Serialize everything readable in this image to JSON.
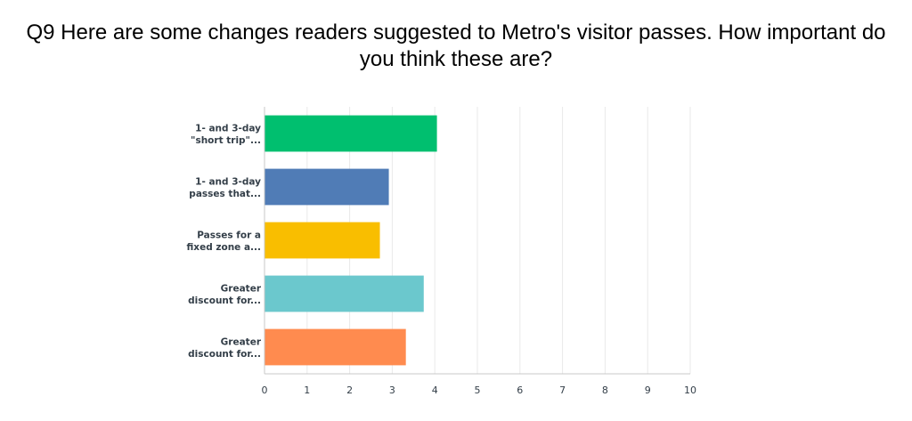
{
  "chart_data": {
    "type": "bar",
    "orientation": "horizontal",
    "title": "Q9 Here are some changes readers suggested to Metro's visitor passes. How important do you think these are?",
    "categories": [
      [
        "1- and 3-day",
        "\"short trip\"..."
      ],
      [
        "1- and 3-day",
        "passes that..."
      ],
      [
        "Passes for a",
        "fixed zone a..."
      ],
      [
        "Greater",
        "discount for..."
      ],
      [
        "Greater",
        "discount for..."
      ]
    ],
    "values": [
      4.05,
      2.92,
      2.71,
      3.74,
      3.32
    ],
    "colors": [
      "#00bf6f",
      "#507cb6",
      "#f9be00",
      "#6bc8cd",
      "#ff8b4f"
    ],
    "xlim": [
      0,
      10
    ],
    "ticks": [
      "0",
      "1",
      "2",
      "3",
      "4",
      "5",
      "6",
      "7",
      "8",
      "9",
      "10"
    ],
    "grid": true,
    "legend": "none"
  }
}
